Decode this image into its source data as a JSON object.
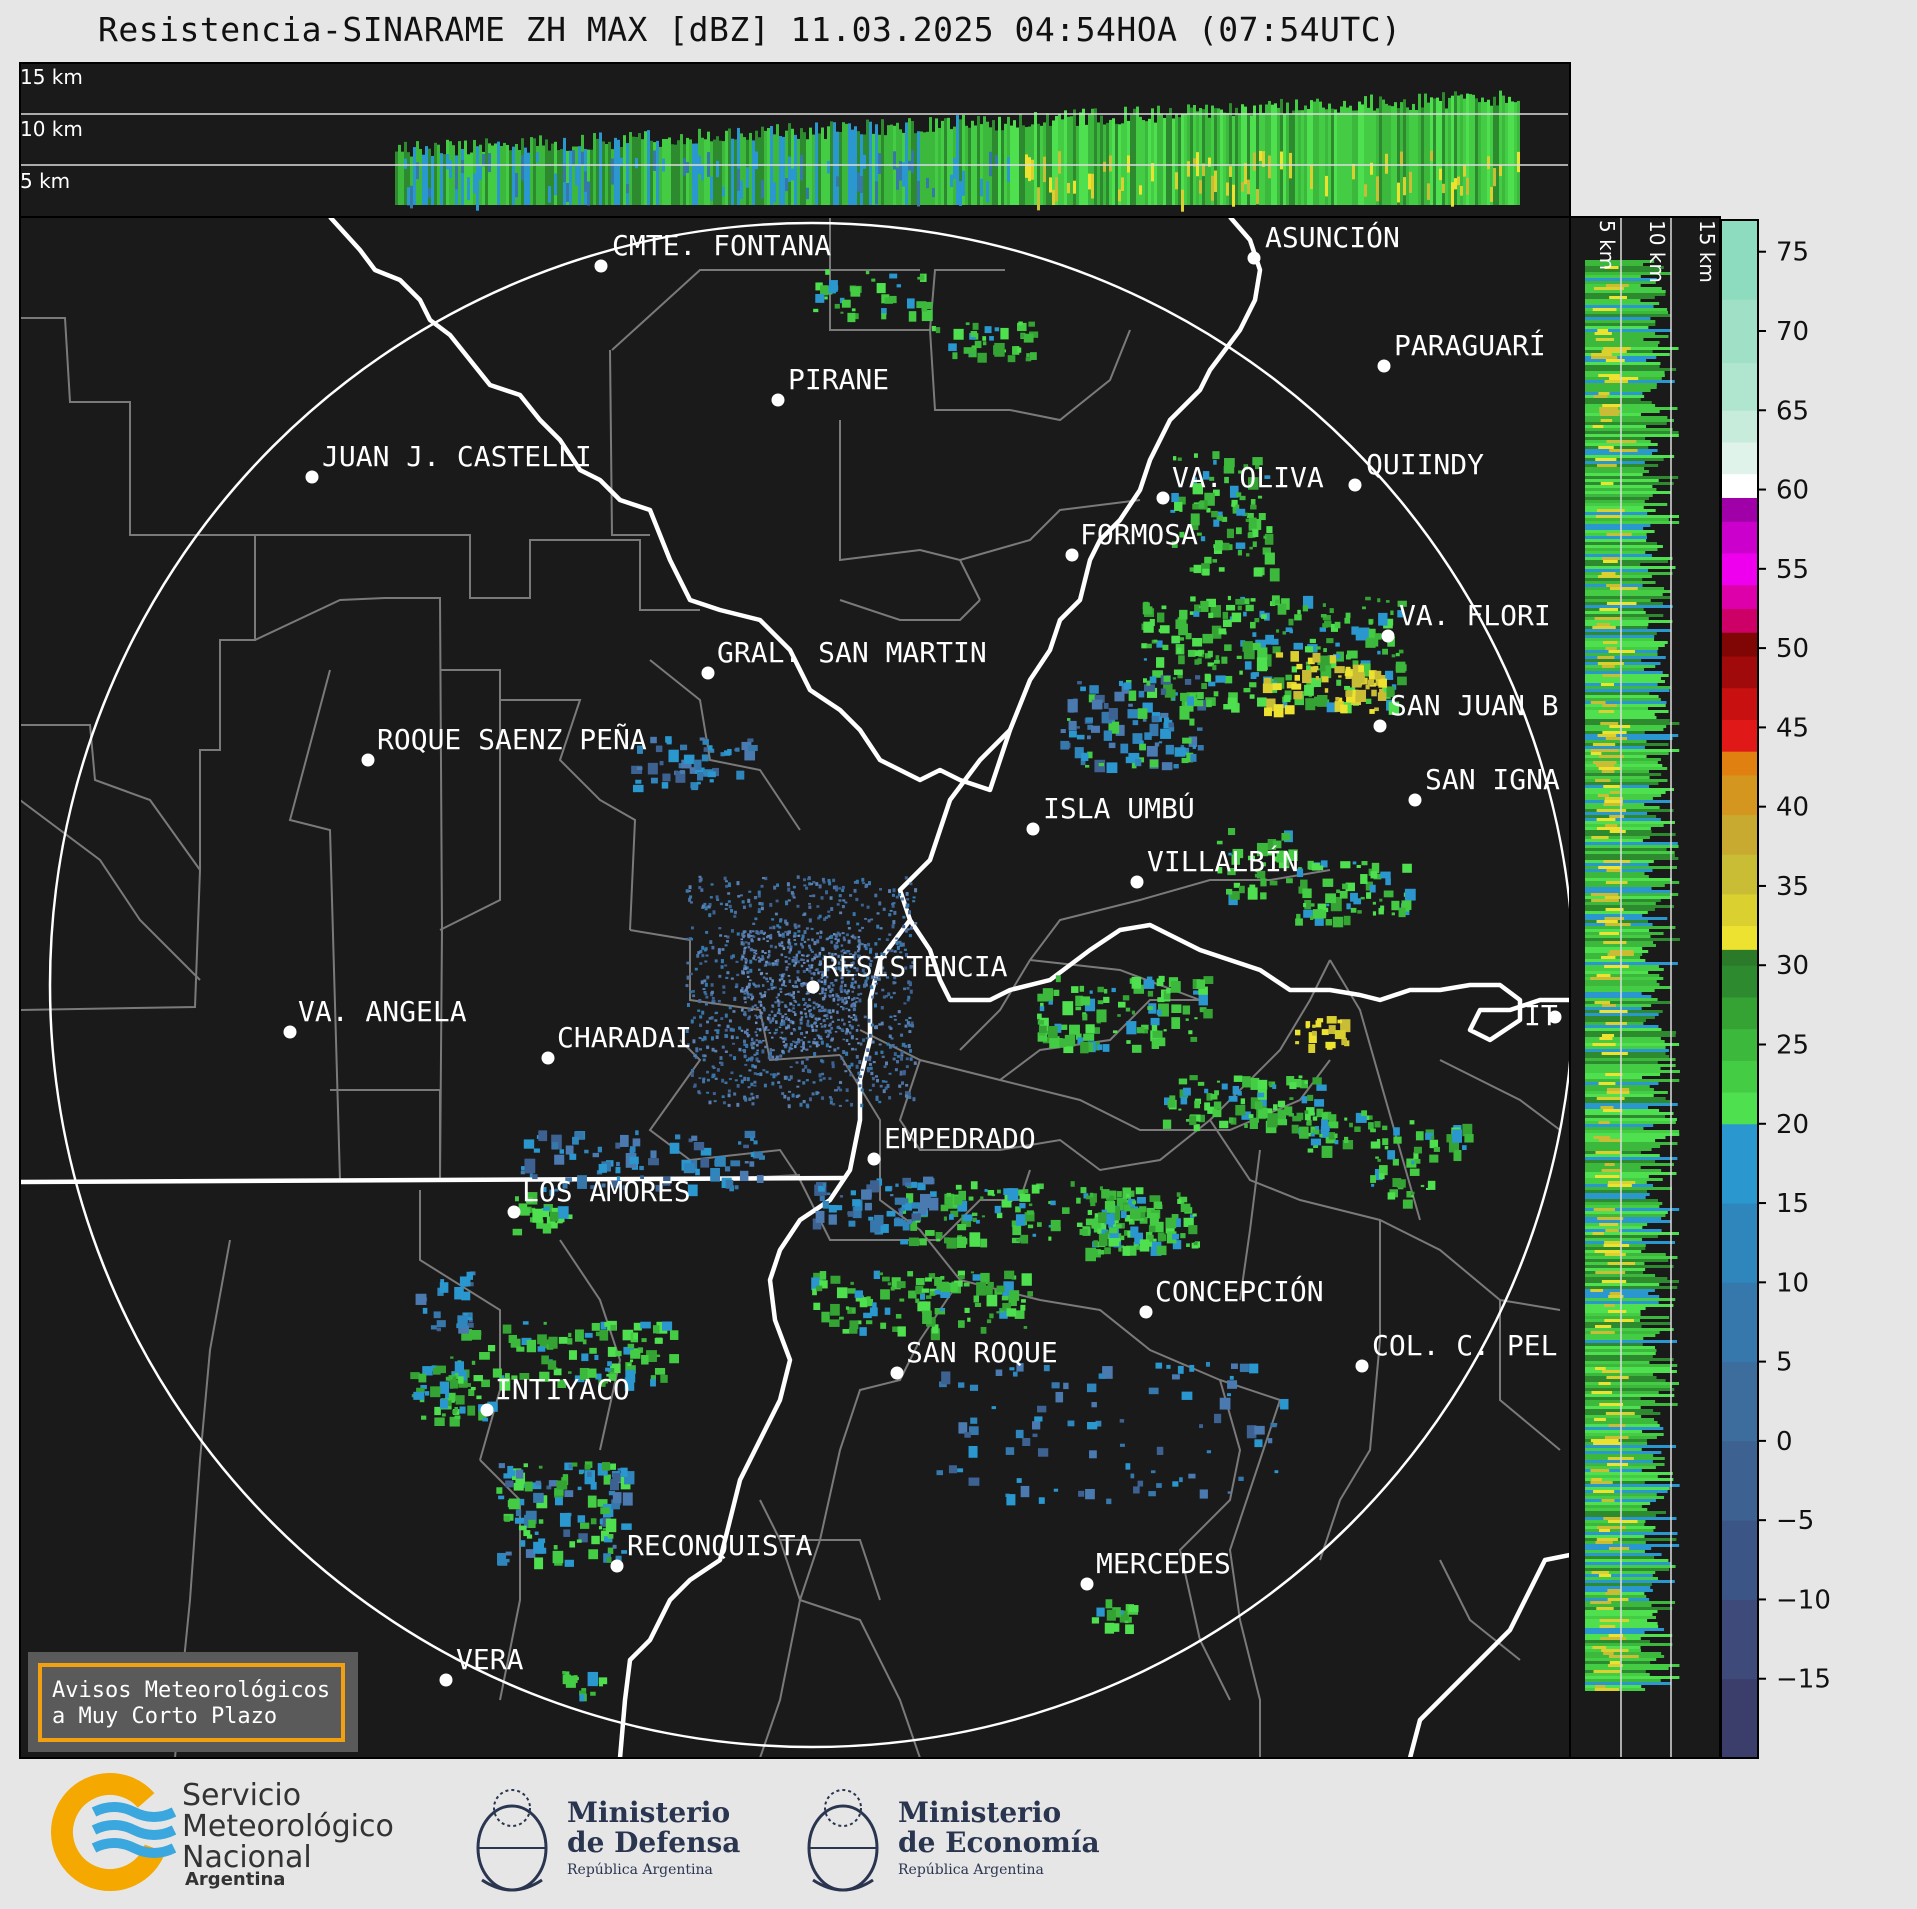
{
  "title": "Resistencia-SINARAME ZH MAX [dBZ] 11.03.2025 04:54HOA (07:54UTC)",
  "top_panel": {
    "height_labels": [
      "15 km",
      "10 km",
      "5 km"
    ]
  },
  "side_panel": {
    "height_labels": [
      "5 km",
      "10 km",
      "15 km"
    ]
  },
  "colorbar": {
    "ticks": [
      "75",
      "70",
      "65",
      "60",
      "55",
      "50",
      "45",
      "40",
      "35",
      "30",
      "25",
      "20",
      "15",
      "10",
      "5",
      "0",
      "−5",
      "−10",
      "−15"
    ],
    "unit": "dBZ"
  },
  "places": [
    {
      "name": "CMTE. FONTANA"
    },
    {
      "name": "ASUNCIÓN"
    },
    {
      "name": "PARAGUARÍ"
    },
    {
      "name": "PIRANE"
    },
    {
      "name": "JUAN J. CASTELLI"
    },
    {
      "name": "VA. OLIVA"
    },
    {
      "name": "QUIINDY"
    },
    {
      "name": "FORMOSA"
    },
    {
      "name": "VA. FLORI"
    },
    {
      "name": "GRAL. SAN MARTIN"
    },
    {
      "name": "SAN JUAN B"
    },
    {
      "name": "ROQUE SAENZ PEÑA"
    },
    {
      "name": "SAN IGNA"
    },
    {
      "name": "ISLA UMBÚ"
    },
    {
      "name": "VILLALBÍN"
    },
    {
      "name": "RESISTENCIA"
    },
    {
      "name": "VA. ANGELA"
    },
    {
      "name": "CHARADAI"
    },
    {
      "name": "IT"
    },
    {
      "name": "EMPEDRADO"
    },
    {
      "name": "LOS AMORES"
    },
    {
      "name": "CONCEPCIÓN"
    },
    {
      "name": "SAN ROQUE"
    },
    {
      "name": "COL. C. PEL"
    },
    {
      "name": "INTIYACO"
    },
    {
      "name": "RECONQUISTA"
    },
    {
      "name": "MERCEDES"
    },
    {
      "name": "VERA"
    }
  ],
  "warning_box": {
    "line1": "Avisos Meteorológicos",
    "line2": "a Muy Corto Plazo"
  },
  "logos": {
    "smn": {
      "line1": "Servicio",
      "line2": "Meteorológico",
      "line3": "Nacional",
      "line4": "Argentina"
    },
    "defensa": {
      "line1": "Ministerio",
      "line2": "de Defensa",
      "line3": "República Argentina"
    },
    "economia": {
      "line1": "Ministerio",
      "line2": "de Economía",
      "line3": "República Argentina"
    }
  },
  "colors": {
    "map_background": "#1a1a1a",
    "border_lines": "#ffffff",
    "department_lines": "#7a7a7a",
    "warning_border": "#f0a010",
    "smn_orange": "#f5a800",
    "smn_blue": "#3aa7de",
    "ministry_navy": "#2a3550"
  }
}
